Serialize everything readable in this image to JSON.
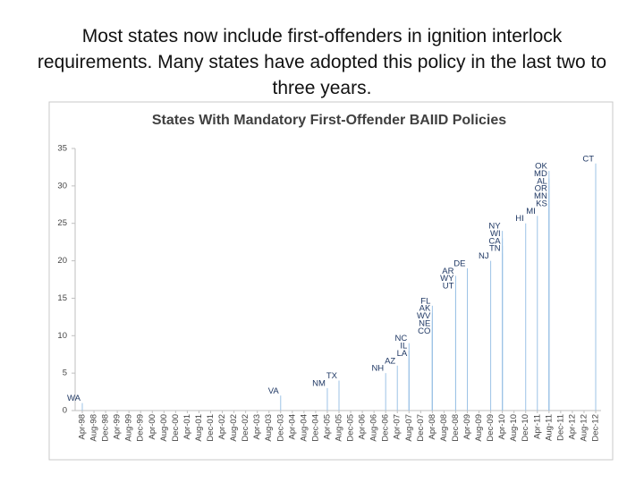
{
  "slide_title": "Most states now include first-offenders in ignition interlock requirements. Many states have adopted this policy in the last two to three years.",
  "chart_data": {
    "type": "stem",
    "title": "States With Mandatory First-Offender BAIID Policies",
    "categories": [
      "Apr-98",
      "Aug-98",
      "Dec-98",
      "Apr-99",
      "Aug-99",
      "Dec-99",
      "Apr-00",
      "Aug-00",
      "Dec-00",
      "Apr-01",
      "Aug-01",
      "Dec-01",
      "Apr-02",
      "Aug-02",
      "Dec-02",
      "Apr-03",
      "Aug-03",
      "Dec-03",
      "Apr-04",
      "Aug-04",
      "Dec-04",
      "Apr-05",
      "Aug-05",
      "Dec-05",
      "Apr-06",
      "Aug-06",
      "Dec-06",
      "Apr-07",
      "Aug-07",
      "Dec-07",
      "Apr-08",
      "Aug-08",
      "Dec-08",
      "Apr-09",
      "Aug-09",
      "Dec-09",
      "Apr-10",
      "Aug-10",
      "Dec-10",
      "Apr-11",
      "Aug-11",
      "Dec-11",
      "Apr-12",
      "Aug-12",
      "Dec-12"
    ],
    "color": "#9dc3e6",
    "label_color": "#1f3864",
    "ylim": [
      0,
      35
    ],
    "yticks": [
      0,
      5,
      10,
      15,
      20,
      25,
      30,
      35
    ],
    "points": [
      {
        "label": "WA",
        "x": "Apr-98",
        "y": 1
      },
      {
        "label": "VA",
        "x": "Dec-03",
        "y": 2
      },
      {
        "label": "NM",
        "x": "Apr-05",
        "y": 3
      },
      {
        "label": "TX",
        "x": "Aug-05",
        "y": 4
      },
      {
        "label": "NH",
        "x": "Dec-06",
        "y": 5
      },
      {
        "label": "AZ",
        "x": "Apr-07",
        "y": 6
      },
      {
        "label": "LA",
        "x": "Aug-07",
        "y": 7
      },
      {
        "label": "IL",
        "x": "Aug-07",
        "y": 8
      },
      {
        "label": "NC",
        "x": "Aug-07",
        "y": 9
      },
      {
        "label": "CO",
        "x": "Apr-08",
        "y": 10
      },
      {
        "label": "NE",
        "x": "Apr-08",
        "y": 11
      },
      {
        "label": "WV",
        "x": "Apr-08",
        "y": 12
      },
      {
        "label": "AK",
        "x": "Apr-08",
        "y": 13
      },
      {
        "label": "FL",
        "x": "Apr-08",
        "y": 14
      },
      {
        "label": "UT",
        "x": "Dec-08",
        "y": 16
      },
      {
        "label": "WY",
        "x": "Dec-08",
        "y": 17
      },
      {
        "label": "AR",
        "x": "Dec-08",
        "y": 18
      },
      {
        "label": "DE",
        "x": "Apr-09",
        "y": 19
      },
      {
        "label": "NJ",
        "x": "Dec-09",
        "y": 20
      },
      {
        "label": "TN",
        "x": "Apr-10",
        "y": 21
      },
      {
        "label": "CA",
        "x": "Apr-10",
        "y": 22
      },
      {
        "label": "WI",
        "x": "Apr-10",
        "y": 23
      },
      {
        "label": "NY",
        "x": "Apr-10",
        "y": 24
      },
      {
        "label": "HI",
        "x": "Dec-10",
        "y": 25
      },
      {
        "label": "MI",
        "x": "Apr-11",
        "y": 26
      },
      {
        "label": "KS",
        "x": "Aug-11",
        "y": 27
      },
      {
        "label": "MN",
        "x": "Aug-11",
        "y": 28
      },
      {
        "label": "OR",
        "x": "Aug-11",
        "y": 29
      },
      {
        "label": "AL",
        "x": "Aug-11",
        "y": 30
      },
      {
        "label": "MD",
        "x": "Aug-11",
        "y": 31
      },
      {
        "label": "OK",
        "x": "Aug-11",
        "y": 32
      },
      {
        "label": "CT",
        "x": "Dec-12",
        "y": 33
      }
    ]
  }
}
